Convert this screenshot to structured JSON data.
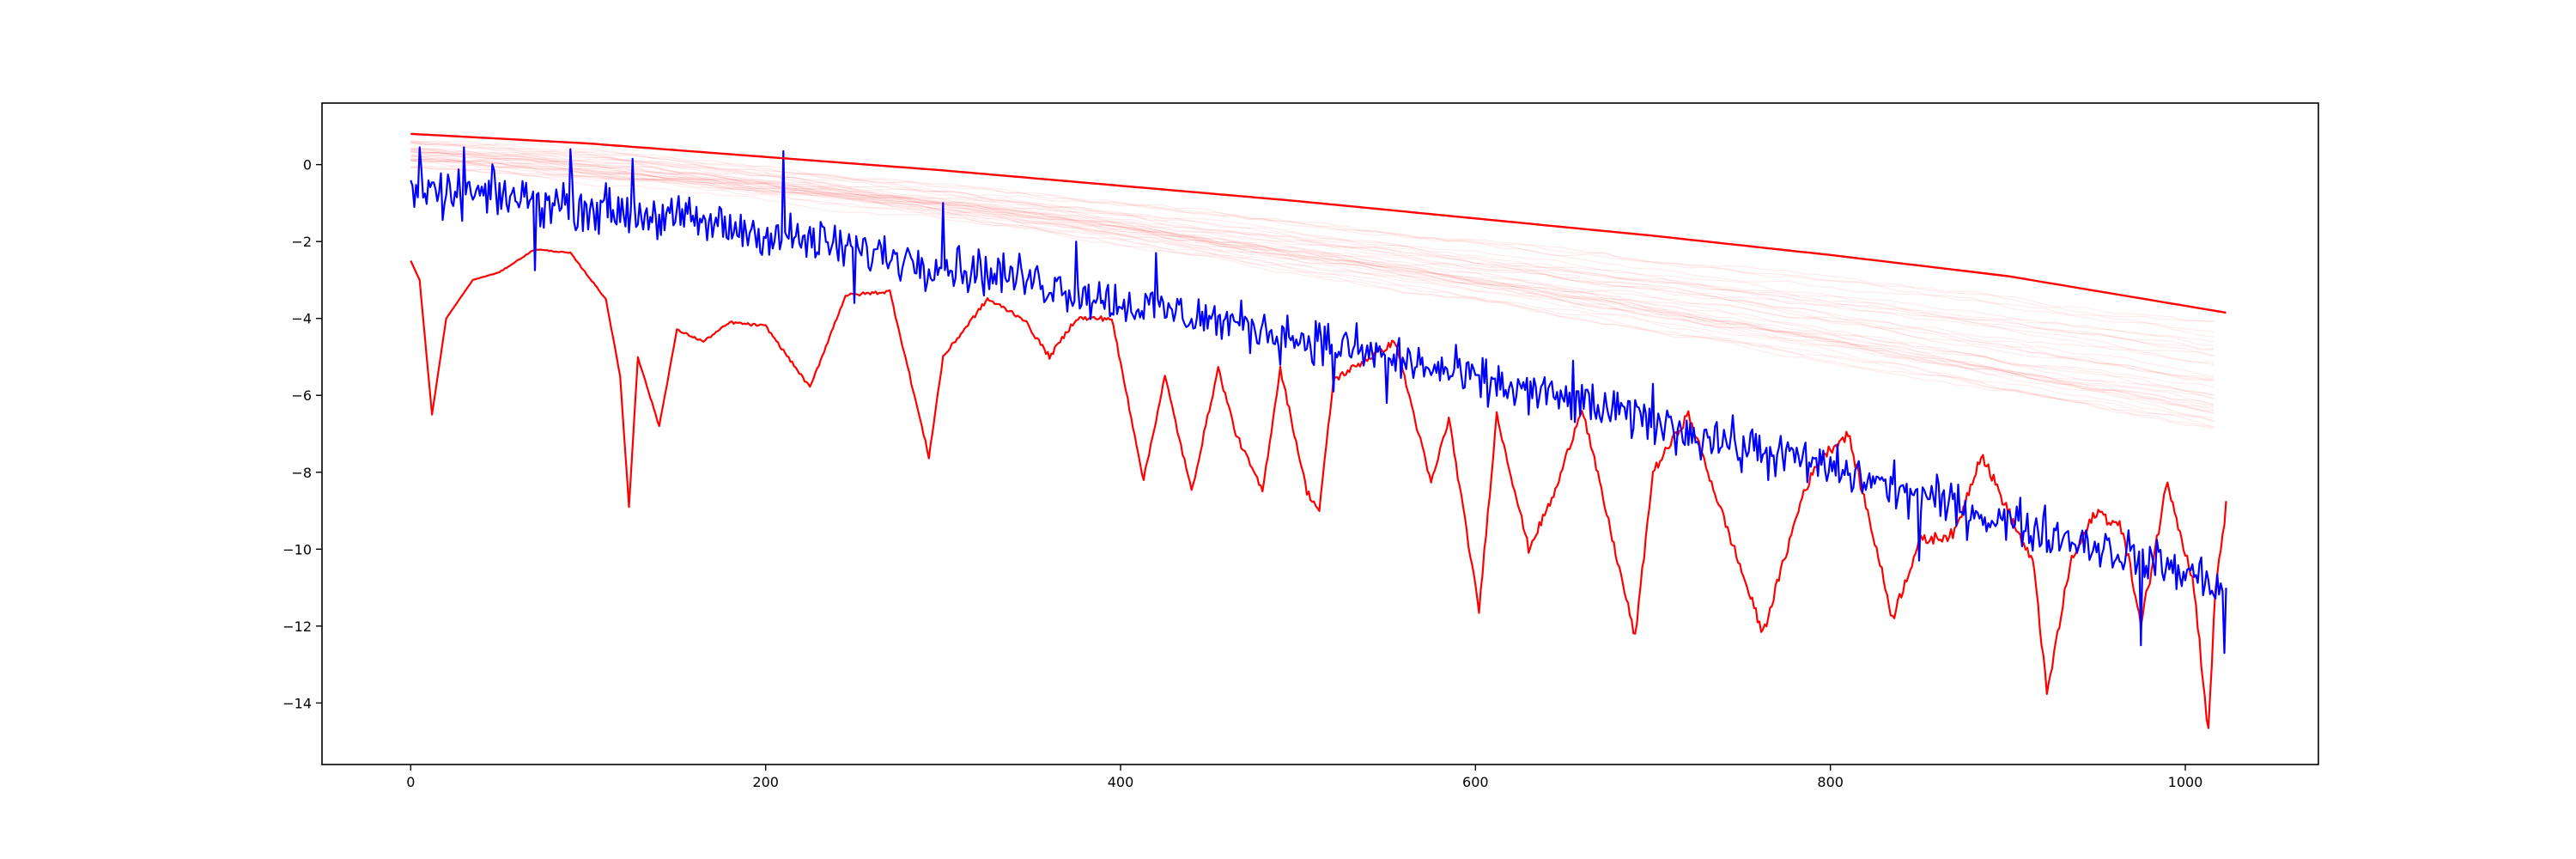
{
  "chart_data": {
    "type": "line",
    "title": "",
    "xlabel": "",
    "ylabel": "",
    "xlim": [
      -50,
      1075
    ],
    "ylim": [
      -15.6,
      1.6
    ],
    "grid": false,
    "legend": "none",
    "x_ticks": [
      0,
      200,
      400,
      600,
      800,
      1000
    ],
    "x_tick_labels": [
      "0",
      "200",
      "400",
      "600",
      "800",
      "1000"
    ],
    "y_ticks": [
      0,
      -2,
      -4,
      -6,
      -8,
      -10,
      -12,
      -14
    ],
    "y_tick_labels": [
      "0",
      "−2",
      "−4",
      "−6",
      "−8",
      "−10",
      "−12",
      "−14"
    ],
    "colors": {
      "blue": "#0000ff",
      "red": "#ff0000",
      "faint": "#ff0000"
    },
    "n_points": 1024,
    "series": [
      {
        "role": "upper-envelope",
        "color": "#ff0000",
        "points": [
          [
            0,
            0.8
          ],
          [
            100,
            0.55
          ],
          [
            200,
            0.2
          ],
          [
            300,
            -0.15
          ],
          [
            400,
            -0.55
          ],
          [
            500,
            -0.95
          ],
          [
            600,
            -1.4
          ],
          [
            700,
            -1.85
          ],
          [
            800,
            -2.35
          ],
          [
            900,
            -2.9
          ],
          [
            1023,
            -3.85
          ]
        ]
      },
      {
        "role": "noisy-trend",
        "color": "#0000ff",
        "points": [
          [
            0,
            -0.8
          ],
          [
            50,
            -0.8
          ],
          [
            100,
            -1.1
          ],
          [
            150,
            -1.4
          ],
          [
            200,
            -1.8
          ],
          [
            250,
            -2.2
          ],
          [
            300,
            -2.6
          ],
          [
            350,
            -3.0
          ],
          [
            400,
            -3.6
          ],
          [
            450,
            -4.0
          ],
          [
            500,
            -4.5
          ],
          [
            550,
            -5.0
          ],
          [
            600,
            -5.6
          ],
          [
            650,
            -6.1
          ],
          [
            700,
            -6.7
          ],
          [
            750,
            -7.3
          ],
          [
            800,
            -7.9
          ],
          [
            850,
            -8.6
          ],
          [
            900,
            -9.3
          ],
          [
            950,
            -9.9
          ],
          [
            1000,
            -10.6
          ],
          [
            1023,
            -11.0
          ]
        ],
        "noise_amplitude": 0.55,
        "spikes": [
          [
            5,
            0.45
          ],
          [
            30,
            0.45
          ],
          [
            70,
            -2.75
          ],
          [
            90,
            0.4
          ],
          [
            125,
            0.15
          ],
          [
            210,
            0.35
          ],
          [
            250,
            -3.6
          ],
          [
            300,
            -1.0
          ],
          [
            375,
            -2.0
          ],
          [
            420,
            -2.3
          ],
          [
            520,
            -5.9
          ],
          [
            550,
            -6.2
          ],
          [
            655,
            -5.1
          ],
          [
            700,
            -5.7
          ],
          [
            750,
            -8.0
          ],
          [
            850,
            -10.3
          ],
          [
            900,
            -9.0
          ],
          [
            975,
            -12.5
          ],
          [
            1022,
            -12.7
          ]
        ]
      },
      {
        "role": "lower-curve",
        "color": "#ff0000",
        "points": [
          [
            0,
            -2.5
          ],
          [
            5,
            -3.0
          ],
          [
            12,
            -6.5
          ],
          [
            20,
            -4.0
          ],
          [
            35,
            -3.0
          ],
          [
            50,
            -2.8
          ],
          [
            70,
            -2.2
          ],
          [
            90,
            -2.3
          ],
          [
            110,
            -3.5
          ],
          [
            118,
            -5.5
          ],
          [
            123,
            -8.9
          ],
          [
            128,
            -5.0
          ],
          [
            140,
            -6.8
          ],
          [
            150,
            -4.3
          ],
          [
            165,
            -4.6
          ],
          [
            180,
            -4.1
          ],
          [
            200,
            -4.2
          ],
          [
            225,
            -5.8
          ],
          [
            245,
            -3.4
          ],
          [
            270,
            -3.3
          ],
          [
            292,
            -7.6
          ],
          [
            300,
            -5.0
          ],
          [
            325,
            -3.5
          ],
          [
            345,
            -4.0
          ],
          [
            360,
            -5.0
          ],
          [
            375,
            -4.0
          ],
          [
            395,
            -4.0
          ],
          [
            413,
            -8.2
          ],
          [
            425,
            -5.5
          ],
          [
            440,
            -8.5
          ],
          [
            455,
            -5.3
          ],
          [
            465,
            -7.0
          ],
          [
            480,
            -8.5
          ],
          [
            490,
            -5.3
          ],
          [
            505,
            -8.5
          ],
          [
            512,
            -9.0
          ],
          [
            520,
            -5.6
          ],
          [
            555,
            -4.6
          ],
          [
            575,
            -8.3
          ],
          [
            585,
            -6.6
          ],
          [
            602,
            -11.6
          ],
          [
            612,
            -6.5
          ],
          [
            630,
            -10.0
          ],
          [
            645,
            -8.5
          ],
          [
            660,
            -6.3
          ],
          [
            690,
            -12.3
          ],
          [
            700,
            -8.0
          ],
          [
            720,
            -6.5
          ],
          [
            762,
            -12.2
          ],
          [
            785,
            -8.5
          ],
          [
            795,
            -7.6
          ],
          [
            810,
            -7.0
          ],
          [
            825,
            -9.8
          ],
          [
            835,
            -11.8
          ],
          [
            850,
            -9.8
          ],
          [
            870,
            -9.6
          ],
          [
            885,
            -7.5
          ],
          [
            915,
            -10.5
          ],
          [
            922,
            -13.8
          ],
          [
            935,
            -10.4
          ],
          [
            950,
            -9.0
          ],
          [
            965,
            -9.5
          ],
          [
            975,
            -12.0
          ],
          [
            990,
            -8.2
          ],
          [
            1005,
            -11.0
          ],
          [
            1013,
            -14.8
          ],
          [
            1017,
            -11.0
          ],
          [
            1023,
            -8.9
          ]
        ]
      }
    ],
    "faint_lines": {
      "color": "#ff0000",
      "count": 36,
      "start_range": [
        -0.1,
        0.6
      ],
      "end_range": [
        -7.0,
        -4.0
      ]
    }
  }
}
